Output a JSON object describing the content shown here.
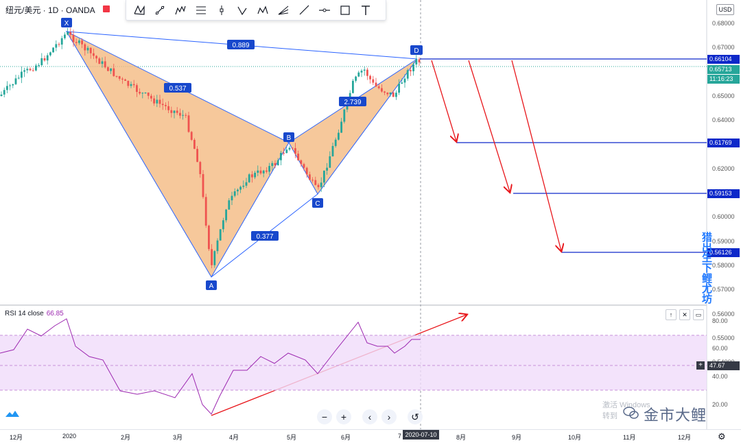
{
  "header": {
    "symbol": "纽元/美元 · 1D · OANDA",
    "currency_badge": "USD"
  },
  "toolbar": {
    "tools": [
      "xabcd-pattern-icon",
      "trendline-icon",
      "elliott-wave-icon",
      "fib-retracement-icon",
      "vertical-line-icon",
      "triangle-pattern-icon",
      "head-shoulders-icon",
      "gann-fan-icon",
      "ray-icon",
      "horizontal-line-icon",
      "rectangle-icon",
      "text-tool-icon"
    ]
  },
  "price_axis": {
    "ticks": [
      "0.68000",
      "0.67000",
      "0.66000",
      "0.65000",
      "0.64000",
      "0.63000",
      "0.62000",
      "0.61000",
      "0.60000",
      "0.59000",
      "0.58000",
      "0.57000",
      "0.56000",
      "0.55000",
      "0.54000"
    ],
    "labels": {
      "target_top": "0.66104",
      "current_price": "0.65713",
      "countdown": "11:16:23",
      "target_1": "0.61769",
      "target_2": "0.59153",
      "target_3": "0.56126"
    }
  },
  "pattern": {
    "points": {
      "X": "X",
      "A": "A",
      "B": "B",
      "C": "C",
      "D": "D"
    },
    "ratios": {
      "xd": "0.889",
      "xa_b": "0.537",
      "bc_d": "2.739",
      "ac": "0.377"
    }
  },
  "rsi": {
    "title": "RSI 14 close",
    "value": "66.85",
    "ticks": [
      "80.00",
      "60.00",
      "40.00",
      "20.00"
    ],
    "current_label": "47.67"
  },
  "x_axis": {
    "labels": [
      "12月",
      "2020",
      "2月",
      "3月",
      "4月",
      "5月",
      "6月",
      "7",
      "8月",
      "9月",
      "10月",
      "11月",
      "12月"
    ],
    "cursor_date": "2020-07-10"
  },
  "nav": {
    "zoom_out": "−",
    "zoom_in": "+",
    "scroll_left": "‹",
    "scroll_right": "›",
    "reset": "↺"
  },
  "overlay": {
    "watermark": "激活 Windows",
    "watermark2": "转到",
    "brand": "金市大鲤",
    "side_text": "猎出生下鲤尤坊"
  },
  "colors": {
    "pattern_fill": "#f3b57a",
    "pattern_line": "#2962ff",
    "label_bg": "#1848cc",
    "arrow": "#e8161b",
    "target_line": "#0d28c9",
    "rsi_line": "#9c27b0",
    "rsi_band": "#f0dcfa",
    "current_price": "#26a69a"
  }
}
